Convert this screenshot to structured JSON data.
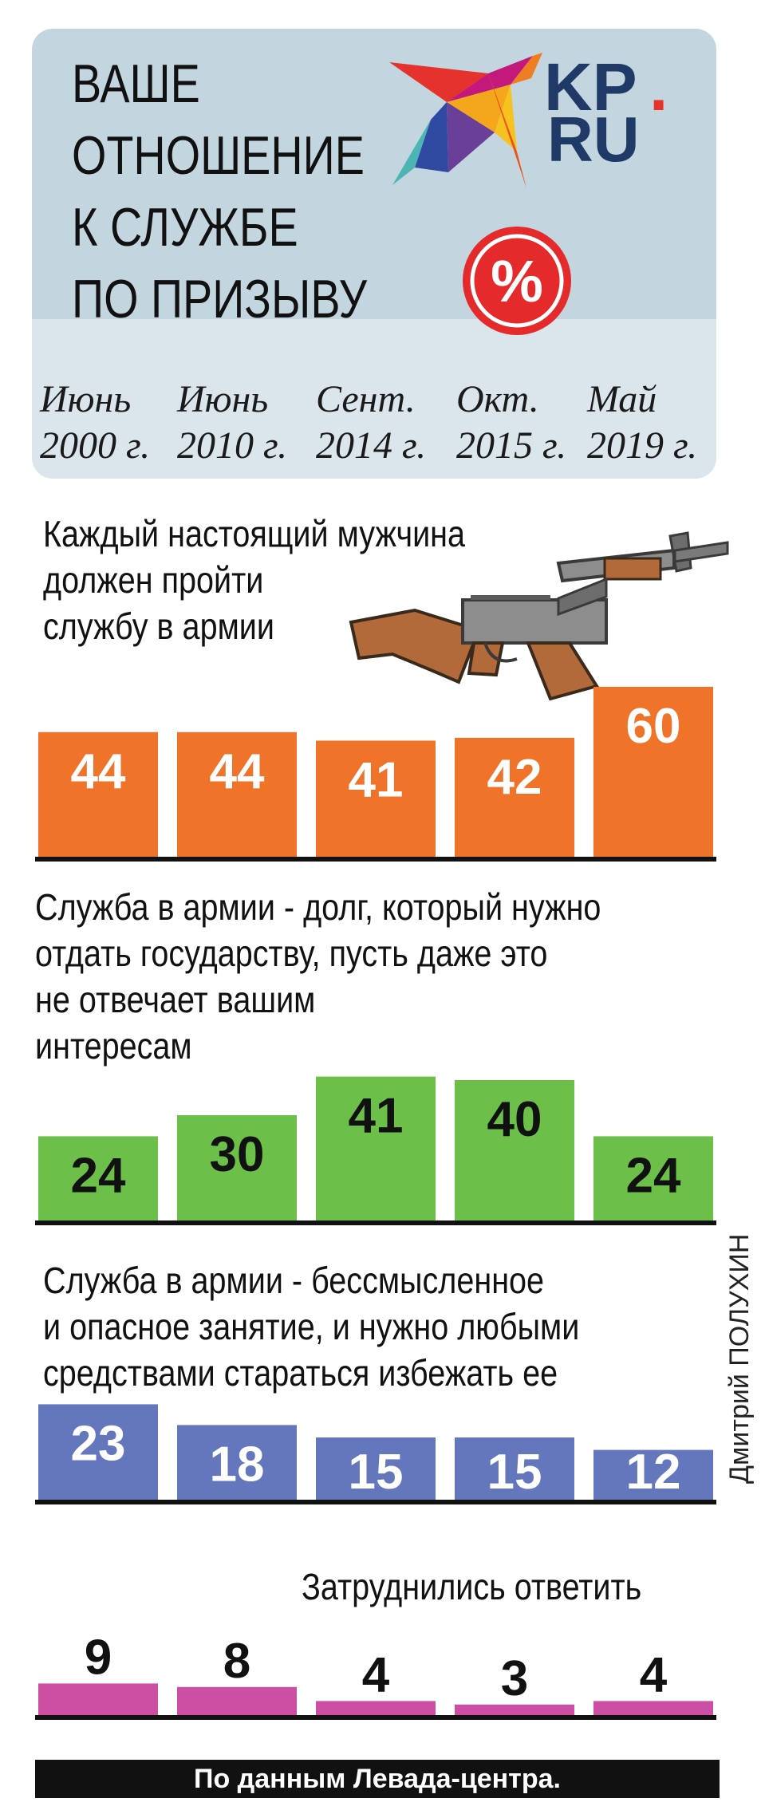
{
  "title_lines": [
    "ВАШЕ",
    "ОТНОШЕНИЕ",
    "К СЛУЖБЕ",
    "ПО ПРИЗЫВУ"
  ],
  "logo": {
    "top": "KP",
    "bottom": "RU",
    "dot": ".",
    "icon": "bird-logo-icon"
  },
  "percent_symbol": "%",
  "dates": [
    [
      "Июнь",
      "2000 г."
    ],
    [
      "Июнь",
      "2010 г."
    ],
    [
      "Сент.",
      "2014 г."
    ],
    [
      "Окт.",
      "2015 г."
    ],
    [
      "Май",
      "2019 г."
    ]
  ],
  "illustration": "kalashnikov-rifle-icon",
  "credit": "Дмитрий ПОЛУХИН",
  "source": "По данным Левада-центра.",
  "colors": {
    "orange": "#f0732a",
    "green": "#6cc04a",
    "blue": "#6477bd",
    "magenta": "#cc4fa3",
    "header_bg": "#c3d6e0",
    "dates_bg": "#dbe6ec"
  },
  "chart_data": [
    {
      "type": "bar",
      "title_lines": [
        "Каждый настоящий мужчина",
        "должен пройти",
        "службу в армии"
      ],
      "categories": [
        "Июнь 2000 г.",
        "Июнь 2010 г.",
        "Сент. 2014 г.",
        "Окт. 2015 г.",
        "Май 2019 г."
      ],
      "values": [
        44,
        44,
        41,
        42,
        60
      ],
      "unit": "%",
      "color": "#f0732a",
      "label_color": "#ffffff"
    },
    {
      "type": "bar",
      "title_lines": [
        "Служба в армии - долг, который нужно",
        "отдать государству, пусть даже это",
        "не отвечает вашим",
        "интересам"
      ],
      "categories": [
        "Июнь 2000 г.",
        "Июнь 2010 г.",
        "Сент. 2014 г.",
        "Окт. 2015 г.",
        "Май 2019 г."
      ],
      "values": [
        24,
        30,
        41,
        40,
        24
      ],
      "unit": "%",
      "color": "#6cc04a",
      "label_color": "#111111"
    },
    {
      "type": "bar",
      "title_lines": [
        "Служба в армии - бессмысленное",
        "и опасное занятие, и нужно любыми",
        "средствами стараться избежать ее"
      ],
      "categories": [
        "Июнь 2000 г.",
        "Июнь 2010 г.",
        "Сент. 2014 г.",
        "Окт. 2015 г.",
        "Май 2019 г."
      ],
      "values": [
        23,
        18,
        15,
        15,
        12
      ],
      "unit": "%",
      "color": "#6477bd",
      "label_color": "#ffffff"
    },
    {
      "type": "bar",
      "title_lines": [
        "Затруднились ответить"
      ],
      "categories": [
        "Июнь 2000 г.",
        "Июнь 2010 г.",
        "Сент. 2014 г.",
        "Окт. 2015 г.",
        "Май 2019 г."
      ],
      "values": [
        9,
        8,
        4,
        3,
        4
      ],
      "unit": "%",
      "color": "#cc4fa3",
      "label_color": "#111111"
    }
  ]
}
